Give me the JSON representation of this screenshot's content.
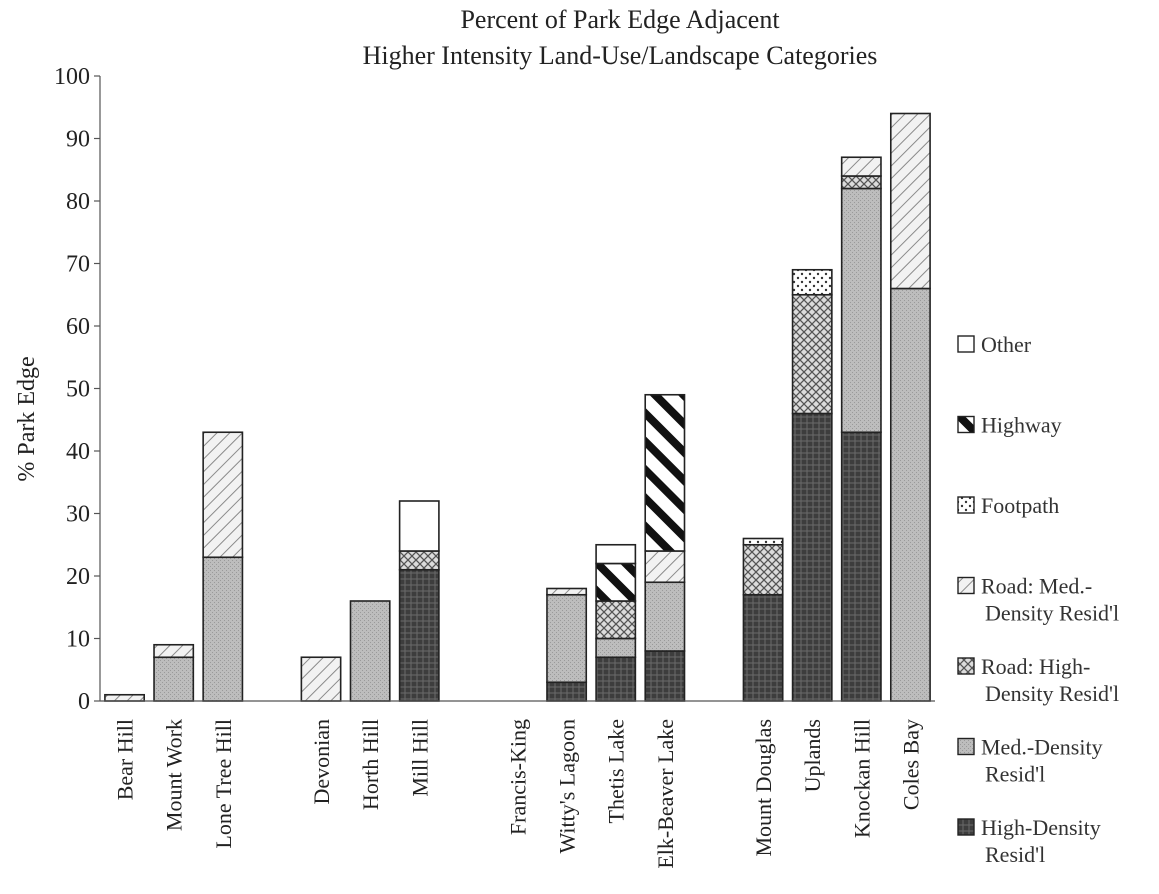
{
  "chart_data": {
    "type": "bar",
    "stacked": true,
    "title_lines": [
      "Percent of Park Edge Adjacent",
      "Higher Intensity Land-Use/Landscape Categories"
    ],
    "xlabel": "",
    "ylabel": "% Park Edge",
    "ylim": [
      0,
      100
    ],
    "yticks": [
      0,
      10,
      20,
      30,
      40,
      50,
      60,
      70,
      80,
      90,
      100
    ],
    "grid": false,
    "legend_position": "right",
    "categories": [
      "Bear Hill",
      "Mount Work",
      "Lone Tree Hill",
      "",
      "Devonian",
      "Horth Hill",
      "Mill Hill",
      "",
      "Francis-King",
      "Witty's Lagoon",
      "Thetis Lake",
      "Elk-Beaver Lake",
      "",
      "Mount Douglas",
      "Uplands",
      "Knockan Hill",
      "Coles Bay"
    ],
    "series": [
      {
        "name": "High-Density Resid'l",
        "legend_lines": [
          "High-Density",
          "Resid'l"
        ],
        "pattern": "high-density",
        "values": [
          0,
          0,
          0,
          0,
          0,
          0,
          21,
          0,
          0,
          3,
          7,
          8,
          0,
          17,
          46,
          43,
          0
        ]
      },
      {
        "name": "Med.-Density Resid'l",
        "legend_lines": [
          "Med.-Density",
          "Resid'l"
        ],
        "pattern": "med-density",
        "values": [
          0,
          7,
          23,
          0,
          0,
          16,
          0,
          0,
          0,
          14,
          3,
          11,
          0,
          0,
          0,
          39,
          66
        ]
      },
      {
        "name": "Road: High-Density Resid'l",
        "legend_lines": [
          "Road: High-",
          "Density Resid'l"
        ],
        "pattern": "road-high",
        "values": [
          0,
          0,
          0,
          0,
          0,
          0,
          3,
          0,
          0,
          0,
          6,
          0,
          0,
          8,
          19,
          2,
          0
        ]
      },
      {
        "name": "Road: Med.-Density Resid'l",
        "legend_lines": [
          "Road: Med.-",
          "Density Resid'l"
        ],
        "pattern": "road-med",
        "values": [
          1,
          2,
          20,
          0,
          7,
          0,
          0,
          0,
          0,
          1,
          0,
          5,
          0,
          0,
          0,
          3,
          28
        ]
      },
      {
        "name": "Footpath",
        "legend_lines": [
          "Footpath"
        ],
        "pattern": "footpath",
        "values": [
          0,
          0,
          0,
          0,
          0,
          0,
          0,
          0,
          0,
          0,
          0,
          0,
          0,
          1,
          4,
          0,
          0
        ]
      },
      {
        "name": "Highway",
        "legend_lines": [
          "Highway"
        ],
        "pattern": "highway",
        "values": [
          0,
          0,
          0,
          0,
          0,
          0,
          0,
          0,
          0,
          0,
          6,
          25,
          0,
          0,
          0,
          0,
          0
        ]
      },
      {
        "name": "Other",
        "legend_lines": [
          "Other"
        ],
        "pattern": "other",
        "values": [
          0,
          0,
          0,
          0,
          0,
          0,
          8,
          0,
          0,
          0,
          3,
          0,
          0,
          0,
          0,
          0,
          0
        ]
      }
    ],
    "legend_order": [
      "Other",
      "Highway",
      "Footpath",
      "Road: Med.-Density Resid'l",
      "Road: High-Density Resid'l",
      "Med.-Density Resid'l",
      "High-Density Resid'l"
    ]
  }
}
